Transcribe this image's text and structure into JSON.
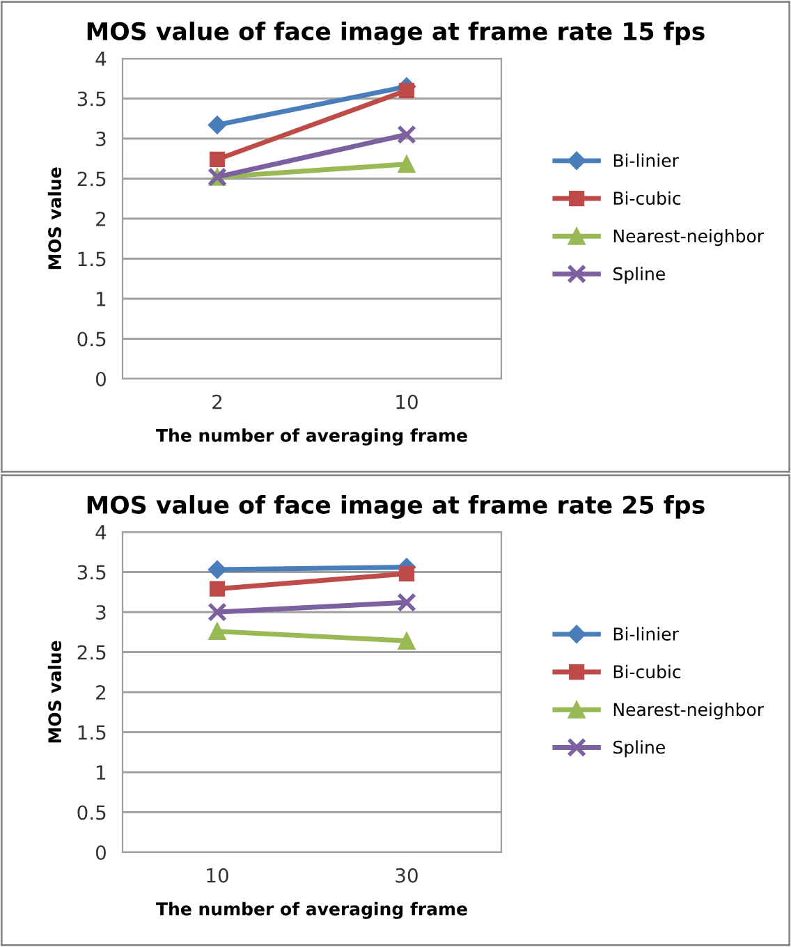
{
  "chart_data": [
    {
      "type": "line",
      "title": "MOS value of face image at frame rate 15 fps",
      "xlabel": "The number of averaging frame",
      "ylabel": "MOS value",
      "categories": [
        "2",
        "10"
      ],
      "ylim": [
        0,
        4
      ],
      "yticks": [
        0,
        0.5,
        1,
        1.5,
        2,
        2.5,
        3,
        3.5,
        4
      ],
      "grid": "y",
      "legend": "right",
      "series": [
        {
          "name": "Bi-linier",
          "color": "#4a7ebb",
          "marker": "diamond",
          "values": [
            3.17,
            3.65
          ]
        },
        {
          "name": "Bi-cubic",
          "color": "#be4b48",
          "marker": "square",
          "values": [
            2.74,
            3.6
          ]
        },
        {
          "name": "Nearest-neighbor",
          "color": "#98b954",
          "marker": "triangle",
          "values": [
            2.52,
            2.68
          ]
        },
        {
          "name": "Spline",
          "color": "#7d60a0",
          "marker": "cross",
          "values": [
            2.52,
            3.05
          ]
        }
      ]
    },
    {
      "type": "line",
      "title": "MOS value of face image at frame rate 25 fps",
      "xlabel": "The number of averaging frame",
      "ylabel": "MOS value",
      "categories": [
        "10",
        "30"
      ],
      "ylim": [
        0,
        4
      ],
      "yticks": [
        0,
        0.5,
        1,
        1.5,
        2,
        2.5,
        3,
        3.5,
        4
      ],
      "grid": "y",
      "legend": "right",
      "series": [
        {
          "name": "Bi-linier",
          "color": "#4a7ebb",
          "marker": "diamond",
          "values": [
            3.53,
            3.56
          ]
        },
        {
          "name": "Bi-cubic",
          "color": "#be4b48",
          "marker": "square",
          "values": [
            3.29,
            3.48
          ]
        },
        {
          "name": "Nearest-neighbor",
          "color": "#98b954",
          "marker": "triangle",
          "values": [
            2.76,
            2.64
          ]
        },
        {
          "name": "Spline",
          "color": "#7d60a0",
          "marker": "cross",
          "values": [
            3.0,
            3.12
          ]
        }
      ]
    }
  ]
}
